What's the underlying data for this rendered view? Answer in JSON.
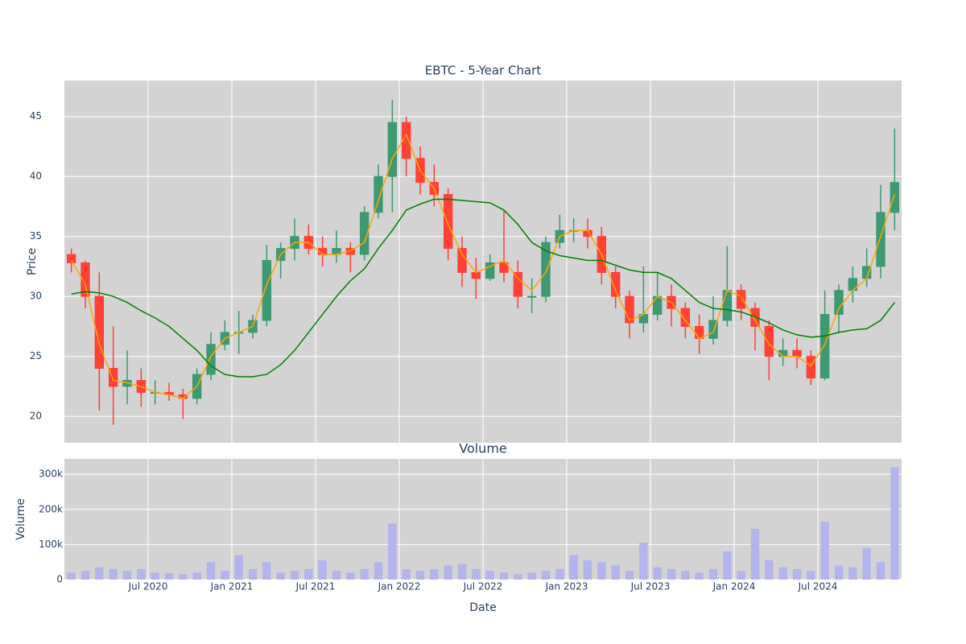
{
  "chart_data": [
    {
      "type": "candlestick",
      "title": "EBTC - 5-Year Chart",
      "y_label": "Price",
      "x": [
        "2020-01",
        "2020-02",
        "2020-03",
        "2020-04",
        "2020-05",
        "2020-06",
        "2020-07",
        "2020-08",
        "2020-09",
        "2020-10",
        "2020-11",
        "2020-12",
        "2021-01",
        "2021-02",
        "2021-03",
        "2021-04",
        "2021-05",
        "2021-06",
        "2021-07",
        "2021-08",
        "2021-09",
        "2021-10",
        "2021-11",
        "2021-12",
        "2022-01",
        "2022-02",
        "2022-03",
        "2022-04",
        "2022-05",
        "2022-06",
        "2022-07",
        "2022-08",
        "2022-09",
        "2022-10",
        "2022-11",
        "2022-12",
        "2023-01",
        "2023-02",
        "2023-03",
        "2023-04",
        "2023-05",
        "2023-06",
        "2023-07",
        "2023-08",
        "2023-09",
        "2023-10",
        "2023-11",
        "2023-12",
        "2024-01",
        "2024-02",
        "2024-03",
        "2024-04",
        "2024-05",
        "2024-06",
        "2024-07",
        "2024-08",
        "2024-09",
        "2024-10",
        "2024-11",
        "2024-12"
      ],
      "open": [
        33.5,
        32.8,
        30,
        24,
        22.5,
        23,
        22,
        22,
        21.8,
        21.5,
        23.5,
        26,
        27,
        27,
        28,
        33,
        34,
        35,
        34,
        33.5,
        34,
        33.5,
        37,
        40,
        44.5,
        41.5,
        39.5,
        38.5,
        34,
        32,
        31.5,
        32.8,
        32,
        30,
        30,
        34.5,
        35.5,
        35.5,
        35,
        32,
        30,
        27.8,
        28.5,
        30,
        29,
        27.5,
        26.5,
        28,
        30.5,
        29,
        27.5,
        25,
        25.5,
        25,
        23.2,
        28.5,
        30.5,
        31.5,
        32.5,
        37
      ],
      "high": [
        34,
        33,
        32,
        27.5,
        25.5,
        24,
        23,
        22.8,
        22.3,
        24,
        27,
        28,
        28.8,
        28.5,
        34.3,
        34.5,
        36.5,
        36,
        35,
        35.5,
        34.5,
        37.5,
        41,
        46.4,
        45,
        42.5,
        41,
        39,
        35,
        33.2,
        33.5,
        37.2,
        33,
        31.5,
        35,
        36.8,
        36.5,
        36.5,
        35.8,
        32.5,
        30.5,
        32.5,
        32,
        31,
        29.5,
        28.5,
        30,
        34.2,
        31,
        29.5,
        28,
        26.5,
        26.5,
        25.5,
        30.5,
        31,
        32.5,
        34,
        39.3,
        44
      ],
      "low": [
        32,
        29,
        20.5,
        19.3,
        21,
        20.8,
        21,
        21.3,
        19.8,
        21,
        23,
        25.5,
        25.2,
        26.5,
        27.5,
        31.5,
        33,
        33.5,
        32.5,
        32.8,
        32,
        33,
        36.5,
        37,
        40,
        38.5,
        37.5,
        33,
        30.8,
        29.8,
        31.3,
        31.2,
        29,
        28.6,
        29.5,
        34,
        34.5,
        34,
        31,
        29,
        26.5,
        27,
        28,
        27.5,
        26.5,
        25.2,
        26,
        27.5,
        28,
        25.5,
        23,
        24.2,
        24,
        22.6,
        23,
        27,
        29.5,
        30.8,
        31.5,
        35.5
      ],
      "close": [
        32.8,
        30,
        24,
        22.5,
        23,
        22,
        22,
        21.8,
        21.5,
        23.5,
        26,
        27,
        27,
        28,
        33,
        34,
        35,
        34,
        33.5,
        34,
        33.5,
        37,
        40,
        44.5,
        41.5,
        39.5,
        38.5,
        34,
        32,
        31.5,
        32.8,
        32,
        30,
        30,
        34.5,
        35.5,
        35.5,
        35,
        32,
        30,
        27.8,
        28.5,
        30,
        29,
        27.5,
        26.5,
        28,
        30.5,
        29,
        27.5,
        25,
        25.5,
        25,
        23.2,
        28.5,
        30.5,
        31.5,
        32.5,
        37,
        39.5
      ],
      "increasing_color": "#3d9970",
      "decreasing_color": "#ff4136",
      "lines": [
        {
          "color": "orange",
          "values": [
            33,
            31,
            26,
            23,
            22.8,
            22.5,
            22,
            21.8,
            21.5,
            22.5,
            25,
            26.5,
            27,
            27.5,
            31,
            33.5,
            34.5,
            34.5,
            33.5,
            33.5,
            33.8,
            34.5,
            38,
            41.5,
            43.5,
            40.5,
            39,
            36,
            33.5,
            32,
            32.5,
            33,
            31.5,
            30.5,
            32,
            35,
            35.5,
            35.5,
            33.5,
            30.5,
            28,
            28.5,
            30,
            29.5,
            28,
            26.5,
            27,
            30.5,
            30,
            28,
            26,
            25,
            25,
            24.2,
            26,
            29,
            30.5,
            31.5,
            35,
            38.5
          ]
        },
        {
          "color": "green",
          "values": [
            30.2,
            30.4,
            30.3,
            30,
            29.5,
            28.8,
            28.2,
            27.5,
            26.5,
            25.5,
            24.2,
            23.5,
            23.3,
            23.3,
            23.5,
            24.3,
            25.5,
            27,
            28.5,
            30,
            31.3,
            32.3,
            34,
            35.5,
            37.2,
            37.7,
            38.1,
            38.1,
            38,
            37.9,
            37.8,
            37.2,
            36,
            34.5,
            33.8,
            33.4,
            33.2,
            33,
            33,
            32.6,
            32.2,
            32,
            32,
            31.5,
            30.5,
            29.5,
            29,
            28.9,
            28.7,
            28.3,
            27.8,
            27.2,
            26.8,
            26.6,
            26.7,
            27,
            27.2,
            27.3,
            28,
            29.5
          ]
        }
      ],
      "xlim": [
        "2020-01",
        "2025-01"
      ],
      "xticks": [
        "2020-07",
        "2021-01",
        "2021-07",
        "2022-01",
        "2022-07",
        "2023-01",
        "2023-07",
        "2024-01",
        "2024-07"
      ],
      "ylim": [
        17.8,
        48
      ],
      "yticks": [
        20,
        25,
        30,
        35,
        40,
        45
      ],
      "grid": true
    },
    {
      "type": "bar",
      "title": "Volume",
      "x_label": "Date",
      "y_label": "Volume",
      "x": [
        "2020-01",
        "2020-02",
        "2020-03",
        "2020-04",
        "2020-05",
        "2020-06",
        "2020-07",
        "2020-08",
        "2020-09",
        "2020-10",
        "2020-11",
        "2020-12",
        "2021-01",
        "2021-02",
        "2021-03",
        "2021-04",
        "2021-05",
        "2021-06",
        "2021-07",
        "2021-08",
        "2021-09",
        "2021-10",
        "2021-11",
        "2021-12",
        "2022-01",
        "2022-02",
        "2022-03",
        "2022-04",
        "2022-05",
        "2022-06",
        "2022-07",
        "2022-08",
        "2022-09",
        "2022-10",
        "2022-11",
        "2022-12",
        "2023-01",
        "2023-02",
        "2023-03",
        "2023-04",
        "2023-05",
        "2023-06",
        "2023-07",
        "2023-08",
        "2023-09",
        "2023-10",
        "2023-11",
        "2023-12",
        "2024-01",
        "2024-02",
        "2024-03",
        "2024-04",
        "2024-05",
        "2024-06",
        "2024-07",
        "2024-08",
        "2024-09",
        "2024-10",
        "2024-11",
        "2024-12"
      ],
      "values": [
        20000,
        25000,
        35000,
        30000,
        25000,
        30000,
        20000,
        18000,
        15000,
        20000,
        50000,
        25000,
        70000,
        30000,
        50000,
        20000,
        25000,
        30000,
        55000,
        25000,
        20000,
        30000,
        50000,
        160000,
        30000,
        25000,
        30000,
        40000,
        45000,
        30000,
        25000,
        20000,
        15000,
        20000,
        25000,
        30000,
        70000,
        55000,
        50000,
        40000,
        25000,
        105000,
        35000,
        30000,
        25000,
        20000,
        30000,
        80000,
        25000,
        145000,
        55000,
        35000,
        30000,
        25000,
        165000,
        40000,
        35000,
        90000,
        50000,
        320000
      ],
      "color": "#b4b4ec",
      "xlim": [
        "2020-01",
        "2025-01"
      ],
      "xticks": [
        {
          "value": "2020-07",
          "label": "Jul 2020"
        },
        {
          "value": "2021-01",
          "label": "Jan 2021"
        },
        {
          "value": "2021-07",
          "label": "Jul 2021"
        },
        {
          "value": "2022-01",
          "label": "Jan 2022"
        },
        {
          "value": "2022-07",
          "label": "Jul 2022"
        },
        {
          "value": "2023-01",
          "label": "Jan 2023"
        },
        {
          "value": "2023-07",
          "label": "Jul 2023"
        },
        {
          "value": "2024-01",
          "label": "Jan 2024"
        },
        {
          "value": "2024-07",
          "label": "Jul 2024"
        }
      ],
      "ylim": [
        0,
        344000
      ],
      "yticks": [
        0,
        {
          "value": 100000,
          "label": "100k"
        },
        {
          "value": 200000,
          "label": "200k"
        },
        {
          "value": 300000,
          "label": "300k"
        }
      ],
      "grid": true
    }
  ]
}
